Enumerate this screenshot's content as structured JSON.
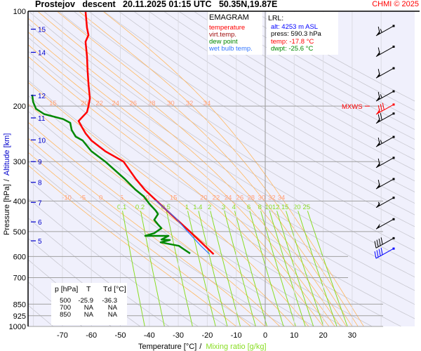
{
  "header": {
    "title": "Prostejov   descent   20.11.2025 01:15 UTC   50.35N,19.87E",
    "copyright": "CHMI © 2025"
  },
  "legend": {
    "title": "EMAGRAM",
    "items": [
      {
        "label": "temperature",
        "color": "#ff0000"
      },
      {
        "label": "virt.temp.",
        "color": "#a01010"
      },
      {
        "label": "dew point",
        "color": "#008800"
      },
      {
        "label": "wet bulb temp.",
        "color": "#3377ff"
      }
    ]
  },
  "lrl": {
    "title": "LRL:",
    "alt": "alt: 4253 m ASL",
    "press": "press: 590.3 hPa",
    "temp": "temp: -17.8 °C",
    "dwpt": "dwpt: -25.6 °C"
  },
  "levels_table": {
    "headers": [
      "p [hPa]",
      "T",
      "Td [°C]"
    ],
    "rows": [
      [
        "500",
        "-25.9",
        "-36.3"
      ],
      [
        "700",
        "NA",
        "NA"
      ],
      [
        "850",
        "NA",
        "NA"
      ]
    ]
  },
  "mxws_label": "MXWS",
  "chart_data": {
    "type": "line",
    "subtype": "emagram",
    "xlabel": "Temperature [°C]",
    "xlabel2": "Mixing ratio [g/kg]",
    "ylabel": "Pressure [hPa]",
    "ylabel2": "Altitude [km]",
    "xlim": [
      -80,
      40
    ],
    "ylim": [
      1000,
      100
    ],
    "y_scale": "log",
    "x_ticks": [
      -70,
      -60,
      -50,
      -40,
      -30,
      -20,
      -10,
      0,
      10,
      20,
      30
    ],
    "y_ticks": [
      100,
      200,
      300,
      400,
      500,
      600,
      700,
      850,
      925,
      1000
    ],
    "altitude_ticks": [
      {
        "km": "15",
        "p": 114
      },
      {
        "km": "14",
        "p": 135
      },
      {
        "km": "12",
        "p": 185
      },
      {
        "km": "11",
        "p": 218
      },
      {
        "km": "10",
        "p": 256
      },
      {
        "km": "9",
        "p": 300
      },
      {
        "km": "8",
        "p": 349
      },
      {
        "km": "7",
        "p": 404
      },
      {
        "km": "6",
        "p": 466
      },
      {
        "km": "5",
        "p": 535
      }
    ],
    "moist_adiabat_labels": [
      {
        "p": 390,
        "values": [
          "-10",
          "-5",
          "0",
          "5",
          "10",
          "15",
          "20",
          "22",
          "24",
          "26",
          "28",
          "30",
          "32",
          "34"
        ]
      },
      {
        "p": 196,
        "values": [
          "15",
          "20",
          "22",
          "24",
          "26",
          "28",
          "30",
          "32",
          "34"
        ]
      }
    ],
    "mixing_ratio_labels": [
      "0.1",
      "0.2",
      "0.5",
      "1",
      "1.4",
      "2",
      "3",
      "4",
      "6",
      "8",
      "10",
      "12",
      "15",
      "20",
      "25"
    ],
    "series": [
      {
        "name": "temperature",
        "color": "#ff0000",
        "points": [
          [
            100,
            -62
          ],
          [
            113,
            -61.5
          ],
          [
            119,
            -61
          ],
          [
            125,
            -62
          ],
          [
            139,
            -61.5
          ],
          [
            154,
            -61.3
          ],
          [
            170,
            -61
          ],
          [
            189,
            -60.5
          ],
          [
            200,
            -61
          ],
          [
            209,
            -61.5
          ],
          [
            223,
            -64.4
          ],
          [
            232,
            -63.4
          ],
          [
            244,
            -62
          ],
          [
            257,
            -60
          ],
          [
            278,
            -55.2
          ],
          [
            300,
            -48.9
          ],
          [
            341,
            -44.6
          ],
          [
            368,
            -41.6
          ],
          [
            429,
            -33.9
          ],
          [
            500,
            -26
          ],
          [
            590,
            -17.8
          ]
        ]
      },
      {
        "name": "wet bulb temp.",
        "color": "#3377ff",
        "points": [
          [
            397,
            -38
          ],
          [
            452,
            -31
          ],
          [
            500,
            -26.8
          ],
          [
            555,
            -22.2
          ],
          [
            590,
            -19.2
          ]
        ]
      },
      {
        "name": "dew point",
        "color": "#008800",
        "points": [
          [
            184,
            -80.4
          ],
          [
            194,
            -80.1
          ],
          [
            204,
            -79.1
          ],
          [
            212,
            -76.3
          ],
          [
            220,
            -69.7
          ],
          [
            226,
            -67.3
          ],
          [
            238,
            -66.8
          ],
          [
            250,
            -65.4
          ],
          [
            257,
            -63
          ],
          [
            278,
            -60
          ],
          [
            300,
            -55.2
          ],
          [
            341,
            -48.4
          ],
          [
            368,
            -44.8
          ],
          [
            387,
            -41.9
          ],
          [
            408,
            -40
          ],
          [
            429,
            -37.8
          ],
          [
            440,
            -37
          ],
          [
            459,
            -38.3
          ],
          [
            475,
            -37
          ],
          [
            488,
            -35.8
          ],
          [
            506,
            -38.3
          ],
          [
            516,
            -41.4
          ],
          [
            516,
            -33.4
          ],
          [
            530,
            -35.8
          ],
          [
            532,
            -32.9
          ],
          [
            541,
            -36.1
          ],
          [
            555,
            -29.8
          ],
          [
            569,
            -28.1
          ],
          [
            587,
            -25.9
          ]
        ]
      }
    ],
    "winds": [
      {
        "p": 116,
        "speed_kt": 65,
        "color": "#000000"
      },
      {
        "p": 135,
        "speed_kt": 60,
        "color": "#000000"
      },
      {
        "p": 158,
        "speed_kt": 60,
        "color": "#000000"
      },
      {
        "p": 187,
        "speed_kt": 65,
        "color": "#000000"
      },
      {
        "p": 206,
        "speed_kt": 80,
        "color": "#ff0000",
        "mxws": true
      },
      {
        "p": 220,
        "speed_kt": 70,
        "color": "#000000"
      },
      {
        "p": 261,
        "speed_kt": 65,
        "color": "#000000"
      },
      {
        "p": 304,
        "speed_kt": 60,
        "color": "#000000"
      },
      {
        "p": 355,
        "speed_kt": 60,
        "color": "#000000"
      },
      {
        "p": 407,
        "speed_kt": 55,
        "color": "#000000"
      },
      {
        "p": 476,
        "speed_kt": 50,
        "color": "#000000"
      },
      {
        "p": 547,
        "speed_kt": 40,
        "color": "#000000"
      },
      {
        "p": 590,
        "speed_kt": 40,
        "color": "#0000ff"
      }
    ],
    "grid": true,
    "colors": {
      "background": "#f0f0fc",
      "dry_adiabat": "#c8c8d0",
      "moist_adiabat": "#ffb860",
      "mixing_ratio": "#88dd22",
      "isobar": "#a0a0a0",
      "altitude": "#0000cc"
    }
  }
}
